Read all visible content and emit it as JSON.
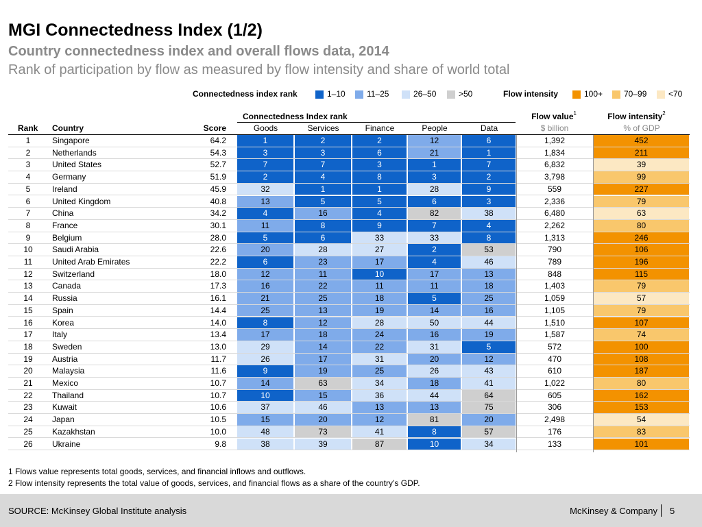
{
  "title": "MGI Connectedness Index (1/2)",
  "subtitle": "Country connectedness index and overall flows data, 2014",
  "subtitle2": "Rank of participation by flow as measured by flow intensity and share of world total",
  "legend": {
    "rank_label": "Connectedness index rank",
    "rank_items": [
      {
        "label": "1–10",
        "color": "#0f63c9"
      },
      {
        "label": "11–25",
        "color": "#7fabea"
      },
      {
        "label": "26–50",
        "color": "#cfe1f8"
      },
      {
        "label": ">50",
        "color": "#cfcfcf"
      }
    ],
    "flow_label": "Flow intensity",
    "flow_items": [
      {
        "label": "100+",
        "color": "#f39200"
      },
      {
        "label": "70–99",
        "color": "#f9c76c"
      },
      {
        "label": "<70",
        "color": "#fce8c3"
      }
    ]
  },
  "table": {
    "group_header": "Connectedness Index rank",
    "headers": {
      "rank": "Rank",
      "country": "Country",
      "score": "Score",
      "goods": "Goods",
      "services": "Services",
      "finance": "Finance",
      "people": "People",
      "data": "Data",
      "flow_value": "Flow value",
      "flow_value_sup": "1",
      "flow_value_unit": "$ billion",
      "flow_intensity": "Flow intensity",
      "flow_intensity_sup": "2",
      "flow_intensity_unit": "% of GDP"
    },
    "rows": [
      {
        "rank": "1",
        "country": "Singapore",
        "score": "64.2",
        "goods": "1",
        "services": "2",
        "finance": "2",
        "people": "12",
        "data": "6",
        "flow_value": "1,392",
        "flow_intensity": "452"
      },
      {
        "rank": "2",
        "country": "Netherlands",
        "score": "54.3",
        "goods": "3",
        "services": "3",
        "finance": "6",
        "people": "21",
        "data": "1",
        "flow_value": "1,834",
        "flow_intensity": "211"
      },
      {
        "rank": "3",
        "country": "United States",
        "score": "52.7",
        "goods": "7",
        "services": "7",
        "finance": "3",
        "people": "1",
        "data": "7",
        "flow_value": "6,832",
        "flow_intensity": "39"
      },
      {
        "rank": "4",
        "country": "Germany",
        "score": "51.9",
        "goods": "2",
        "services": "4",
        "finance": "8",
        "people": "3",
        "data": "2",
        "flow_value": "3,798",
        "flow_intensity": "99"
      },
      {
        "rank": "5",
        "country": "Ireland",
        "score": "45.9",
        "goods": "32",
        "services": "1",
        "finance": "1",
        "people": "28",
        "data": "9",
        "flow_value": "559",
        "flow_intensity": "227"
      },
      {
        "rank": "6",
        "country": "United Kingdom",
        "score": "40.8",
        "goods": "13",
        "services": "5",
        "finance": "5",
        "people": "6",
        "data": "3",
        "flow_value": "2,336",
        "flow_intensity": "79"
      },
      {
        "rank": "7",
        "country": "China",
        "score": "34.2",
        "goods": "4",
        "services": "16",
        "finance": "4",
        "people": "82",
        "data": "38",
        "flow_value": "6,480",
        "flow_intensity": "63"
      },
      {
        "rank": "8",
        "country": "France",
        "score": "30.1",
        "goods": "11",
        "services": "8",
        "finance": "9",
        "people": "7",
        "data": "4",
        "flow_value": "2,262",
        "flow_intensity": "80"
      },
      {
        "rank": "9",
        "country": "Belgium",
        "score": "28.0",
        "goods": "5",
        "services": "6",
        "finance": "33",
        "people": "33",
        "data": "8",
        "flow_value": "1,313",
        "flow_intensity": "246"
      },
      {
        "rank": "10",
        "country": "Saudi Arabia",
        "score": "22.6",
        "goods": "20",
        "services": "28",
        "finance": "27",
        "people": "2",
        "data": "53",
        "flow_value": "790",
        "flow_intensity": "106"
      },
      {
        "rank": "11",
        "country": "United Arab Emirates",
        "score": "22.2",
        "goods": "6",
        "services": "23",
        "finance": "17",
        "people": "4",
        "data": "46",
        "flow_value": "789",
        "flow_intensity": "196"
      },
      {
        "rank": "12",
        "country": "Switzerland",
        "score": "18.0",
        "goods": "12",
        "services": "11",
        "finance": "10",
        "people": "17",
        "data": "13",
        "flow_value": "848",
        "flow_intensity": "115"
      },
      {
        "rank": "13",
        "country": "Canada",
        "score": "17.3",
        "goods": "16",
        "services": "22",
        "finance": "11",
        "people": "11",
        "data": "18",
        "flow_value": "1,403",
        "flow_intensity": "79"
      },
      {
        "rank": "14",
        "country": "Russia",
        "score": "16.1",
        "goods": "21",
        "services": "25",
        "finance": "18",
        "people": "5",
        "data": "25",
        "flow_value": "1,059",
        "flow_intensity": "57"
      },
      {
        "rank": "15",
        "country": "Spain",
        "score": "14.4",
        "goods": "25",
        "services": "13",
        "finance": "19",
        "people": "14",
        "data": "16",
        "flow_value": "1,105",
        "flow_intensity": "79"
      },
      {
        "rank": "16",
        "country": "Korea",
        "score": "14.0",
        "goods": "8",
        "services": "12",
        "finance": "28",
        "people": "50",
        "data": "44",
        "flow_value": "1,510",
        "flow_intensity": "107"
      },
      {
        "rank": "17",
        "country": "Italy",
        "score": "13.4",
        "goods": "17",
        "services": "18",
        "finance": "24",
        "people": "16",
        "data": "19",
        "flow_value": "1,587",
        "flow_intensity": "74"
      },
      {
        "rank": "18",
        "country": "Sweden",
        "score": "13.0",
        "goods": "29",
        "services": "14",
        "finance": "22",
        "people": "31",
        "data": "5",
        "flow_value": "572",
        "flow_intensity": "100"
      },
      {
        "rank": "19",
        "country": "Austria",
        "score": "11.7",
        "goods": "26",
        "services": "17",
        "finance": "31",
        "people": "20",
        "data": "12",
        "flow_value": "470",
        "flow_intensity": "108"
      },
      {
        "rank": "20",
        "country": "Malaysia",
        "score": "11.6",
        "goods": "9",
        "services": "19",
        "finance": "25",
        "people": "26",
        "data": "43",
        "flow_value": "610",
        "flow_intensity": "187"
      },
      {
        "rank": "21",
        "country": "Mexico",
        "score": "10.7",
        "goods": "14",
        "services": "63",
        "finance": "34",
        "people": "18",
        "data": "41",
        "flow_value": "1,022",
        "flow_intensity": "80"
      },
      {
        "rank": "22",
        "country": "Thailand",
        "score": "10.7",
        "goods": "10",
        "services": "15",
        "finance": "36",
        "people": "44",
        "data": "64",
        "flow_value": "605",
        "flow_intensity": "162"
      },
      {
        "rank": "23",
        "country": "Kuwait",
        "score": "10.6",
        "goods": "37",
        "services": "46",
        "finance": "13",
        "people": "13",
        "data": "75",
        "flow_value": "306",
        "flow_intensity": "153"
      },
      {
        "rank": "24",
        "country": "Japan",
        "score": "10.5",
        "goods": "15",
        "services": "20",
        "finance": "12",
        "people": "81",
        "data": "20",
        "flow_value": "2,498",
        "flow_intensity": "54"
      },
      {
        "rank": "25",
        "country": "Kazakhstan",
        "score": "10.0",
        "goods": "48",
        "services": "73",
        "finance": "41",
        "people": "8",
        "data": "57",
        "flow_value": "176",
        "flow_intensity": "83"
      },
      {
        "rank": "26",
        "country": "Ukraine",
        "score": "9.8",
        "goods": "38",
        "services": "39",
        "finance": "87",
        "people": "10",
        "data": "34",
        "flow_value": "133",
        "flow_intensity": "101"
      }
    ]
  },
  "footnotes": [
    "1 Flows value represents total goods, services, and financial inflows and outflows.",
    "2 Flow intensity represents the total value of goods, services, and financial flows as a share of the country’s GDP."
  ],
  "footer": {
    "source": "SOURCE: McKinsey Global Institute analysis",
    "company": "McKinsey & Company",
    "page": "5"
  }
}
